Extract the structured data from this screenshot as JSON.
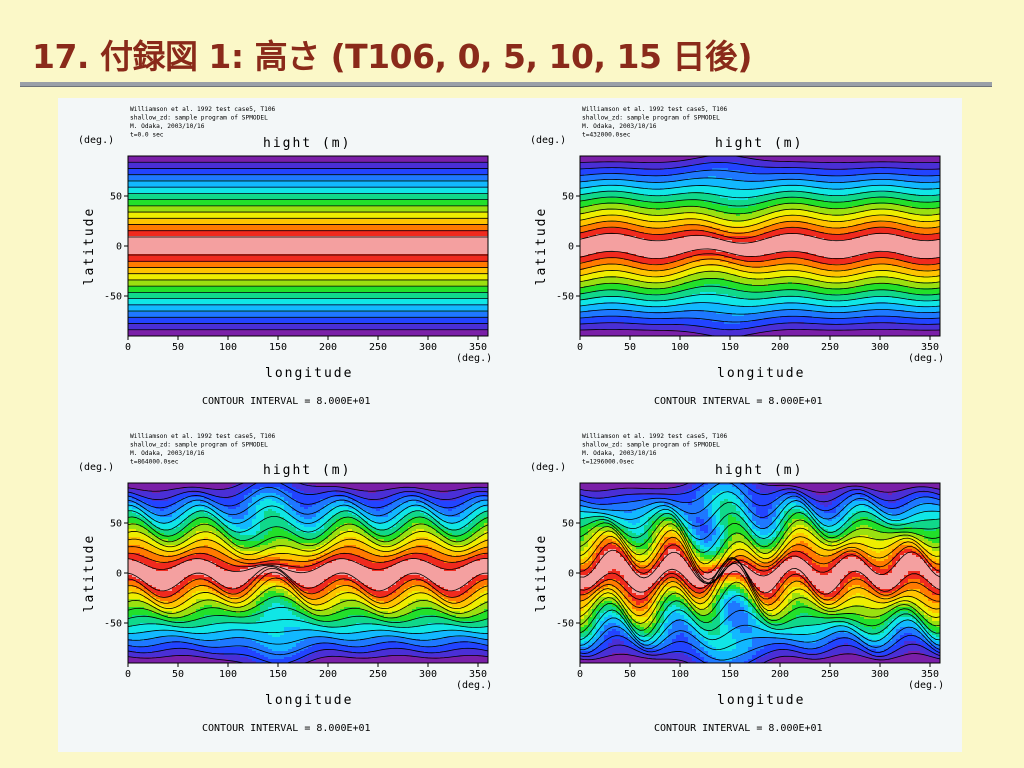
{
  "slide": {
    "title": "17. 付録図 1: 高さ (T106, 0, 5, 10, 15 日後)"
  },
  "chart_data": [
    {
      "type": "heatmap",
      "panel": "top-left",
      "header_lines": [
        "Williamson et al. 1992 test case5, T106",
        "shallow_zd: sample program of SPMODEL",
        "M. Odaka, 2003/10/16",
        "t=0.0 sec"
      ],
      "title": "hight (m)",
      "xlabel": "longitude",
      "ylabel": "latitude",
      "x_unit": "(deg.)",
      "y_unit": "(deg.)",
      "xlim": [
        0,
        360
      ],
      "ylim": [
        -90,
        90
      ],
      "x_ticks": [
        0,
        50,
        100,
        150,
        200,
        250,
        300,
        350
      ],
      "y_ticks": [
        -50,
        0,
        50
      ],
      "contour_interval": "CONTOUR INTERVAL = 8.000E+01",
      "day": 0
    },
    {
      "type": "heatmap",
      "panel": "top-right",
      "header_lines": [
        "Williamson et al. 1992 test case5, T106",
        "shallow_zd: sample program of SPMODEL",
        "M. Odaka, 2003/10/16",
        "t=432000.0sec"
      ],
      "title": "hight (m)",
      "xlabel": "longitude",
      "ylabel": "latitude",
      "x_unit": "(deg.)",
      "y_unit": "(deg.)",
      "xlim": [
        0,
        360
      ],
      "ylim": [
        -90,
        90
      ],
      "x_ticks": [
        0,
        50,
        100,
        150,
        200,
        250,
        300,
        350
      ],
      "y_ticks": [
        -50,
        0,
        50
      ],
      "contour_interval": "CONTOUR INTERVAL = 8.000E+01",
      "day": 5
    },
    {
      "type": "heatmap",
      "panel": "bottom-left",
      "header_lines": [
        "Williamson et al. 1992 test case5, T106",
        "shallow_zd: sample program of SPMODEL",
        "M. Odaka, 2003/10/16",
        "t=864000.0sec"
      ],
      "title": "hight (m)",
      "xlabel": "longitude",
      "ylabel": "latitude",
      "x_unit": "(deg.)",
      "y_unit": "(deg.)",
      "xlim": [
        0,
        360
      ],
      "ylim": [
        -90,
        90
      ],
      "x_ticks": [
        0,
        50,
        100,
        150,
        200,
        250,
        300,
        350
      ],
      "y_ticks": [
        -50,
        0,
        50
      ],
      "contour_interval": "CONTOUR INTERVAL = 8.000E+01",
      "day": 10
    },
    {
      "type": "heatmap",
      "panel": "bottom-right",
      "header_lines": [
        "Williamson et al. 1992 test case5, T106",
        "shallow_zd: sample program of SPMODEL",
        "M. Odaka, 2003/10/16",
        "t=1296000.0sec"
      ],
      "title": "hight (m)",
      "xlabel": "longitude",
      "ylabel": "latitude",
      "x_unit": "(deg.)",
      "y_unit": "(deg.)",
      "xlim": [
        0,
        360
      ],
      "ylim": [
        -90,
        90
      ],
      "x_ticks": [
        0,
        50,
        100,
        150,
        200,
        250,
        300,
        350
      ],
      "y_ticks": [
        -50,
        0,
        50
      ],
      "contour_interval": "CONTOUR INTERVAL = 8.000E+01",
      "day": 15
    }
  ],
  "colors": {
    "title": "#8a2a1a",
    "band_palette": [
      "#7a1fa8",
      "#4a2fd6",
      "#2244ff",
      "#1e78ff",
      "#12b8ff",
      "#10e6e6",
      "#10d88a",
      "#22e02a",
      "#9ae010",
      "#eeee00",
      "#ffc400",
      "#ff7a00",
      "#f02a1e",
      "#f4a0a0"
    ]
  }
}
